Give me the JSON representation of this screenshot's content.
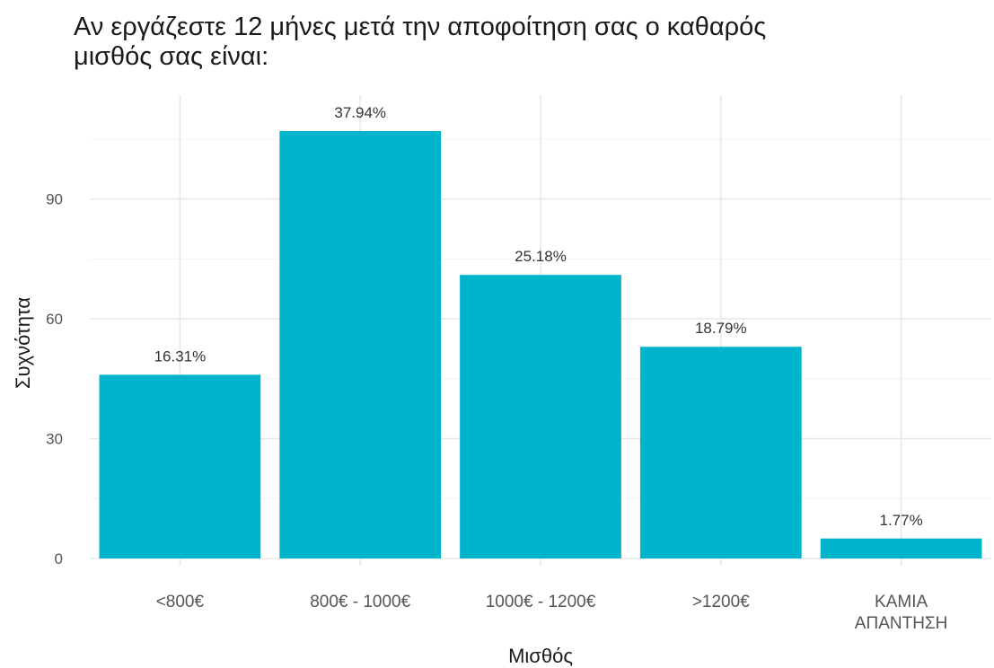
{
  "chart_data": {
    "type": "bar",
    "title": "Αν  εργάζεστε 12 μήνες μετά την αποφοίτηση σας ο καθαρός\nμισθός σας είναι:",
    "xlabel": "Μισθός",
    "ylabel": "Συχνότητα",
    "categories": [
      [
        "<800€"
      ],
      [
        "800€ - 1000€"
      ],
      [
        "1000€ - 1200€"
      ],
      [
        ">1200€"
      ],
      [
        "ΚΑΜΙΑ",
        "ΑΠΑΝΤΗΣΗ"
      ]
    ],
    "values": [
      46,
      107,
      71,
      53,
      5
    ],
    "data_labels": [
      "16.31%",
      "37.94%",
      "25.18%",
      "18.79%",
      "1.77%"
    ],
    "ylim": [
      0,
      116
    ],
    "yticks": [
      0,
      30,
      60,
      90
    ],
    "grid": true,
    "color": "#00B4CC"
  }
}
